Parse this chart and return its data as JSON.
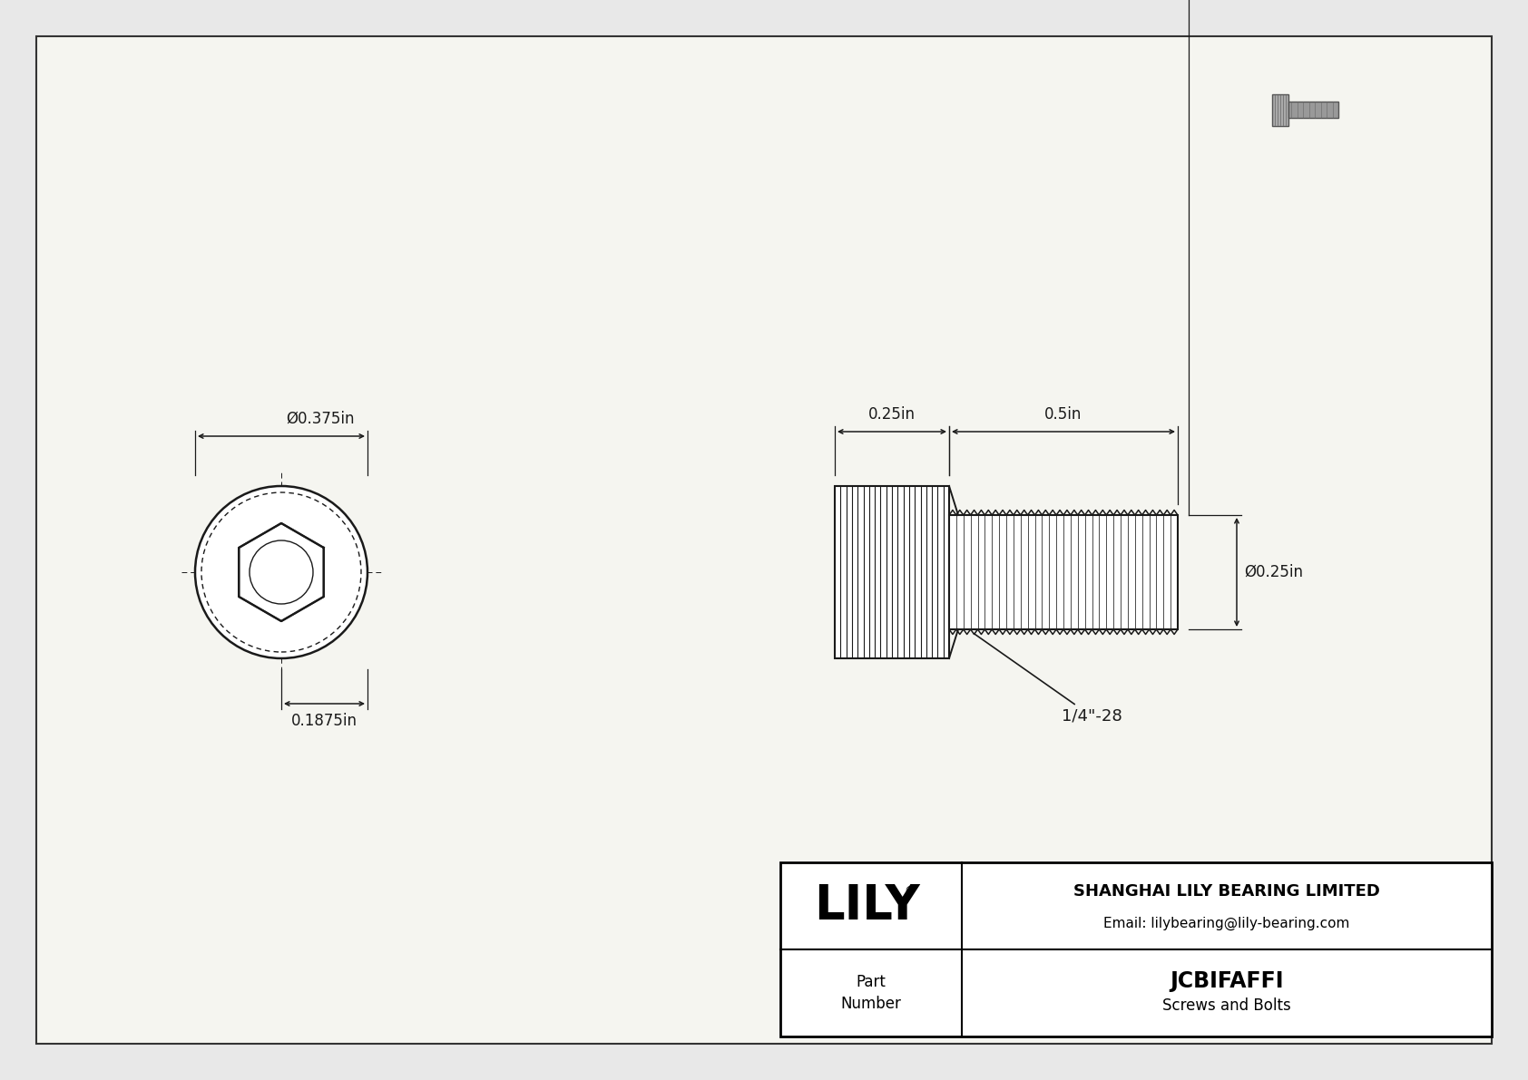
{
  "bg_color": "#e8e8e8",
  "drawing_bg": "#f5f5f0",
  "border_color": "#333333",
  "line_color": "#1a1a1a",
  "dim_color": "#1a1a1a",
  "company": "SHANGHAI LILY BEARING LIMITED",
  "email": "Email: lilybearing@lily-bearing.com",
  "part_label": "Part\nNumber",
  "part_number": "JCBIFAFFI",
  "part_category": "Screws and Bolts",
  "lily_logo": "LILY",
  "dim_head_diameter": "Ø0.375in",
  "dim_head_height": "0.1875in",
  "dim_shank_length": "0.5in",
  "dim_head_length": "0.25in",
  "dim_shank_diameter": "Ø0.25in",
  "dim_thread": "1/4\"-28"
}
